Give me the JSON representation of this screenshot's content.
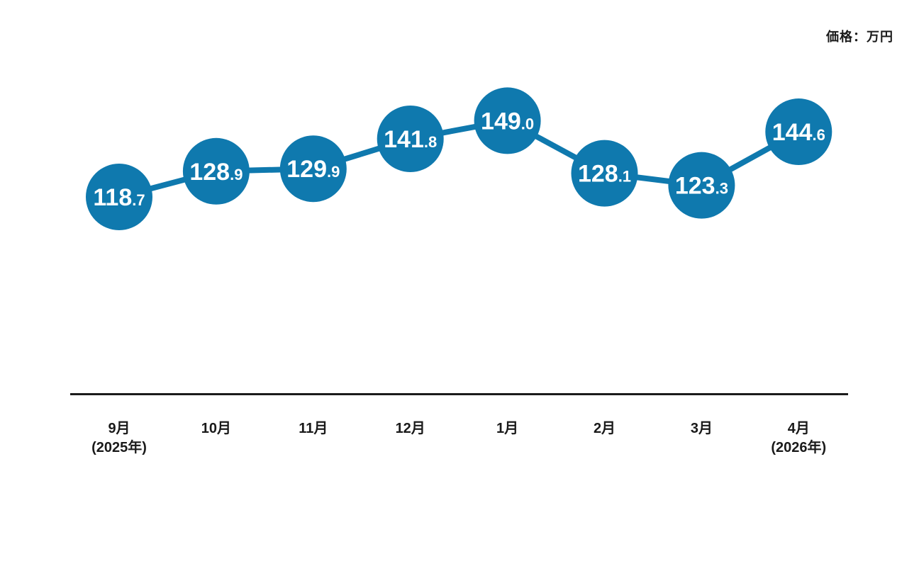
{
  "header": {
    "unit_label": "価格：万円"
  },
  "chart_data": {
    "type": "line",
    "title": "価格：万円",
    "unit_label": "価格：万円",
    "categories": [
      {
        "month": "9月",
        "year": "(2025年)"
      },
      {
        "month": "10月",
        "year": ""
      },
      {
        "month": "11月",
        "year": ""
      },
      {
        "month": "12月",
        "year": ""
      },
      {
        "month": "1月",
        "year": ""
      },
      {
        "month": "2月",
        "year": ""
      },
      {
        "month": "3月",
        "year": ""
      },
      {
        "month": "4月",
        "year": "(2026年)"
      }
    ],
    "series": [
      {
        "name": "価格",
        "values": [
          118.7,
          128.9,
          129.9,
          141.8,
          149.0,
          128.1,
          123.3,
          144.6
        ]
      }
    ],
    "value_decimals": 1,
    "xlabel": "",
    "ylabel": "",
    "grid": false,
    "legend": "none",
    "colors": {
      "marker": "#0f79ae",
      "line": "#0f79ae",
      "value_text": "#ffffff",
      "axis": "#1b1b1b",
      "category_text": "#1a1a1a"
    }
  }
}
